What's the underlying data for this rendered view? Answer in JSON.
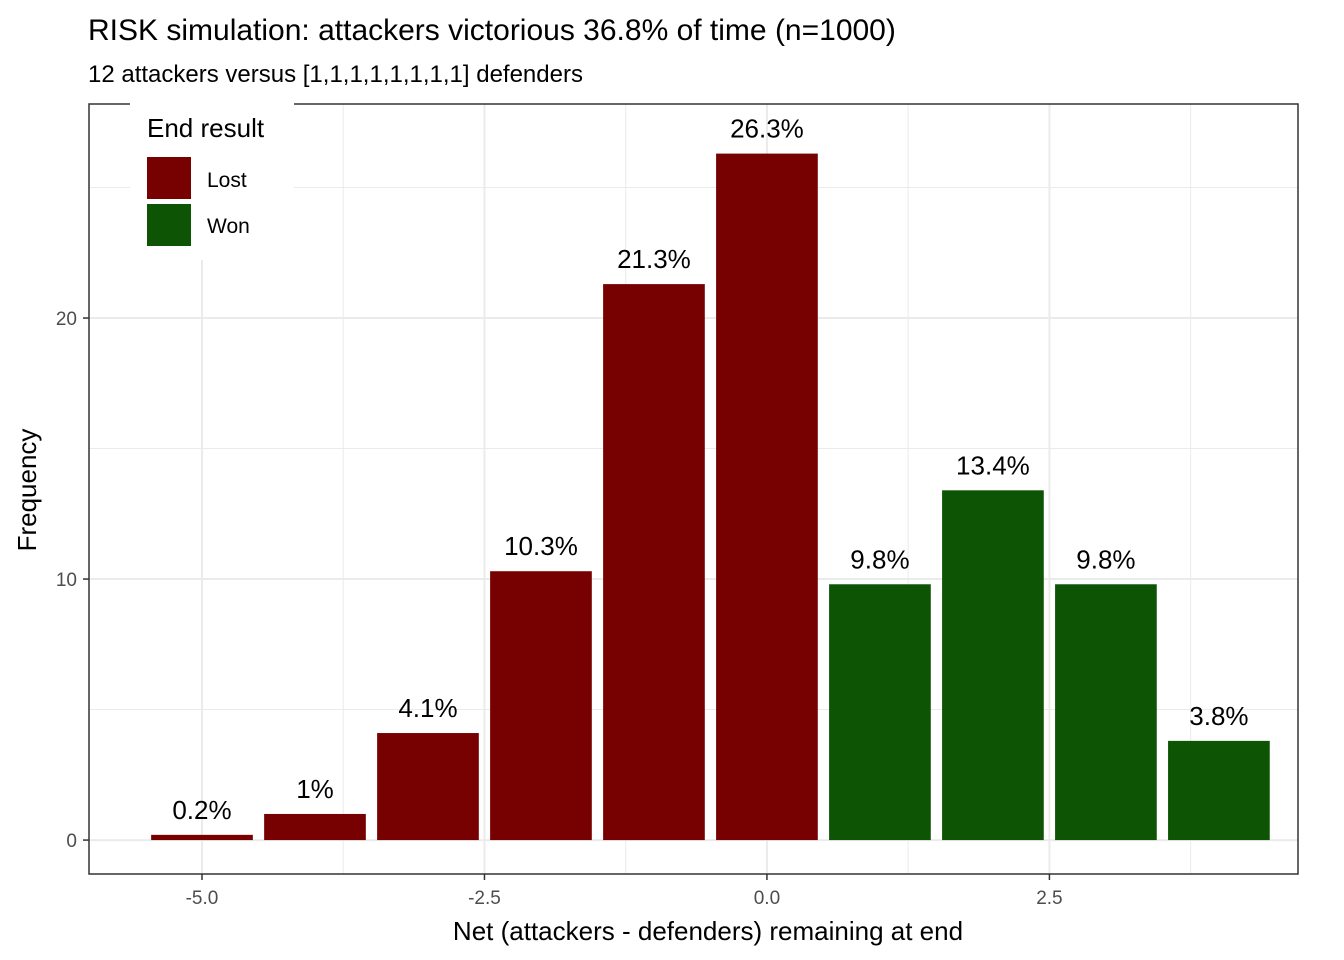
{
  "chart_data": {
    "type": "bar",
    "title": "RISK simulation: attackers victorious 36.8% of time (n=1000)",
    "subtitle": "12 attackers versus [1,1,1,1,1,1,1,1] defenders",
    "xlabel": "Net (attackers - defenders) remaining at end",
    "ylabel": "Frequency",
    "xlim": [
      -6.0,
      4.7
    ],
    "ylim": [
      -1.3,
      28.2
    ],
    "x_ticks": [
      -5.0,
      -2.5,
      0.0,
      2.5
    ],
    "x_tick_labels": [
      "-5.0",
      "-2.5",
      "0.0",
      "2.5"
    ],
    "y_ticks": [
      0,
      10,
      20
    ],
    "y_tick_labels": [
      "0",
      "10",
      "20"
    ],
    "grid": true,
    "bar_width": 0.9,
    "legend": {
      "title": "End result",
      "position": "top-left",
      "entries": [
        {
          "label": "Lost",
          "color": "#770000"
        },
        {
          "label": "Won",
          "color": "#0d5504"
        }
      ]
    },
    "bars": [
      {
        "x": -5,
        "value": 0.2,
        "label": "0.2%",
        "result": "Lost"
      },
      {
        "x": -4,
        "value": 1.0,
        "label": "1%",
        "result": "Lost"
      },
      {
        "x": -3,
        "value": 4.1,
        "label": "4.1%",
        "result": "Lost"
      },
      {
        "x": -2,
        "value": 10.3,
        "label": "10.3%",
        "result": "Lost"
      },
      {
        "x": -1,
        "value": 21.3,
        "label": "21.3%",
        "result": "Lost"
      },
      {
        "x": 0,
        "value": 26.3,
        "label": "26.3%",
        "result": "Lost"
      },
      {
        "x": 1,
        "value": 9.8,
        "label": "9.8%",
        "result": "Won"
      },
      {
        "x": 2,
        "value": 13.4,
        "label": "13.4%",
        "result": "Won"
      },
      {
        "x": 3,
        "value": 9.8,
        "label": "9.8%",
        "result": "Won"
      },
      {
        "x": 4,
        "value": 3.8,
        "label": "3.8%",
        "result": "Won"
      }
    ]
  }
}
